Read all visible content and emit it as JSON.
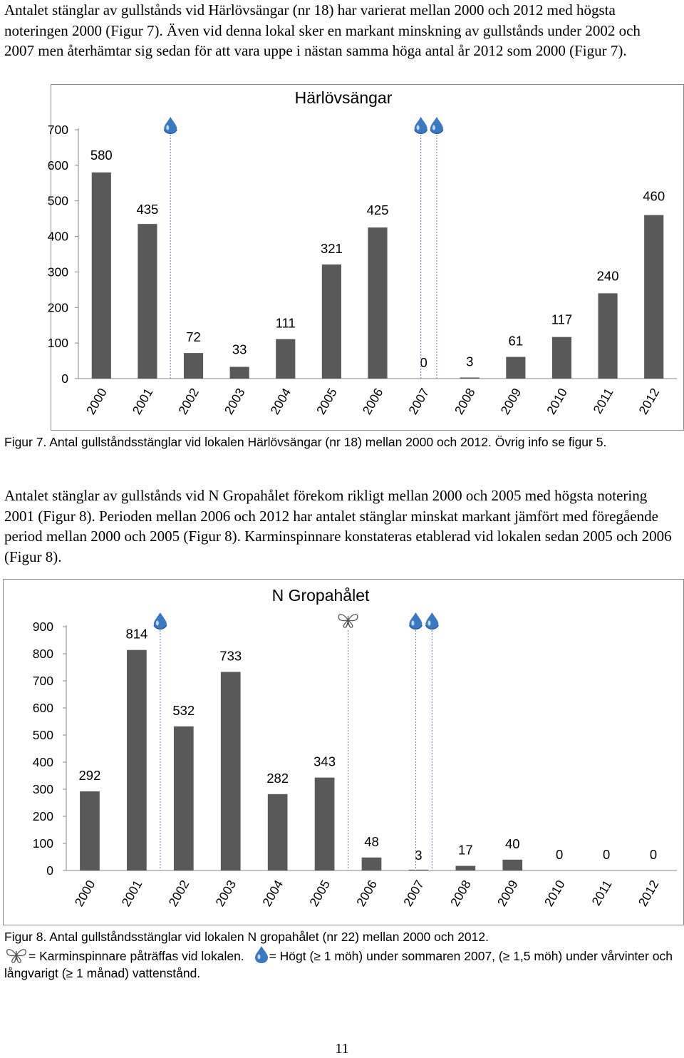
{
  "paragraph1": "Antalet stänglar av gullstånds vid Härlövsängar (nr 18) har varierat mellan 2000 och 2012 med högsta noteringen 2000 (Figur 7). Även vid denna lokal sker en markant minskning av gullstånds under 2002 och 2007 men återhämtar sig sedan för att vara uppe i nästan samma höga antal år 2012 som 2000 (Figur 7).",
  "figure7_caption": "Figur 7. Antal gullståndsstänglar vid lokalen Härlövsängar (nr 18) mellan 2000 och 2012. Övrig info se figur 5.",
  "paragraph2": "Antalet stänglar av gullstånds vid N Gropahålet förekom rikligt mellan 2000 och 2005 med högsta notering 2001 (Figur 8). Perioden mellan 2006 och 2012 har antalet stänglar minskat markant jämfört med föregående period mellan 2000 och 2005 (Figur 8). Karminspinnare konstateras etablerad vid lokalen sedan 2005 och 2006 (Figur 8).",
  "figure8_caption_line1": "Figur 8. Antal gullståndsstänglar vid lokalen N gropahålet (nr 22) mellan 2000 och 2012.",
  "legend_butterfly_text": "= Karminspinnare påträffas vid lokalen.",
  "legend_water_text": "= Högt (≥ 1 möh) under sommaren 2007, (≥ 1,5 möh) under vårvinter och långvarigt (≥ 1 månad) vattenstånd.",
  "page_number": "11",
  "colors": {
    "bar": "#595959",
    "water": "#3a78c2",
    "marker_line": "#7f9cc9",
    "axis": "#888888"
  },
  "icons": {
    "water": "water-drop-icon",
    "butterfly": "butterfly-icon"
  },
  "chart_data": [
    {
      "type": "bar",
      "title": "Härlövsängar",
      "categories": [
        "2000",
        "2001",
        "2002",
        "2003",
        "2004",
        "2005",
        "2006",
        "2007",
        "2008",
        "2009",
        "2010",
        "2011",
        "2012"
      ],
      "values": [
        580,
        435,
        72,
        33,
        111,
        321,
        425,
        0,
        3,
        61,
        117,
        240,
        460
      ],
      "yticks": [
        0,
        100,
        200,
        300,
        400,
        500,
        600,
        700
      ],
      "ylim": [
        0,
        700
      ],
      "water_markers": [
        "2001-2002",
        "2007",
        "2007-2008"
      ],
      "butterfly_markers": []
    },
    {
      "type": "bar",
      "title": "N Gropahålet",
      "categories": [
        "2000",
        "2001",
        "2002",
        "2003",
        "2004",
        "2005",
        "2006",
        "2007",
        "2008",
        "2009",
        "2010",
        "2011",
        "2012"
      ],
      "values": [
        292,
        814,
        532,
        733,
        282,
        343,
        48,
        3,
        17,
        40,
        0,
        0,
        0
      ],
      "yticks": [
        0,
        100,
        200,
        300,
        400,
        500,
        600,
        700,
        800,
        900
      ],
      "ylim": [
        0,
        900
      ],
      "water_markers": [
        "2001-2002",
        "2007",
        "2007-2008"
      ],
      "butterfly_markers": [
        "2005-2006"
      ]
    }
  ]
}
